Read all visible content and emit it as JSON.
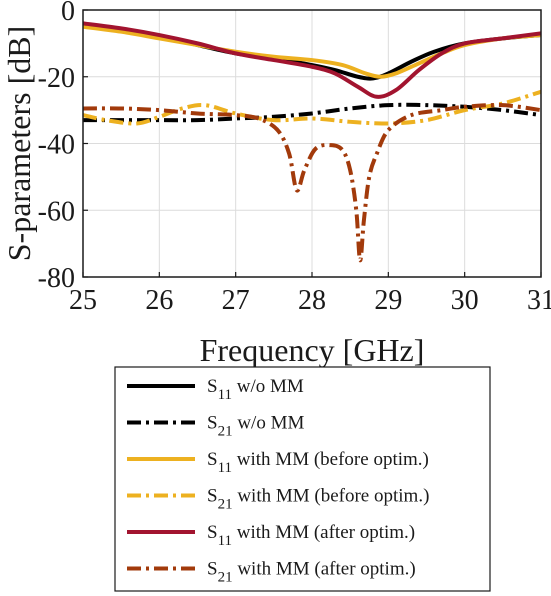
{
  "colors": {
    "black": "#000000",
    "gold": "#EDB120",
    "crimson": "#A2142F",
    "rust": "#A23A0B",
    "grid": "#DCDCDC"
  },
  "chart_data": {
    "type": "line",
    "title": "",
    "xlabel": "Frequency [GHz]",
    "ylabel": "S-parameters [dB]",
    "xlim": [
      25,
      31
    ],
    "ylim": [
      -80,
      0
    ],
    "xticks": [
      "25",
      "26",
      "27",
      "28",
      "29",
      "30",
      "31"
    ],
    "yticks": [
      "0",
      "-20",
      "-40",
      "-60",
      "-80"
    ],
    "grid": true,
    "legend_position": "below the plot",
    "series": [
      {
        "name": "S11 w/o MM",
        "legend_main": "S",
        "legend_sub": "11",
        "legend_rest": " w/o MM",
        "color": "#000000",
        "style": "solid",
        "x": [
          25,
          25.5,
          26,
          26.5,
          27,
          27.5,
          28,
          28.3,
          28.6,
          28.8,
          29.0,
          29.3,
          29.6,
          30,
          30.5,
          31
        ],
        "y": [
          -4.5,
          -6,
          -8,
          -10.5,
          -13,
          -14.5,
          -16.5,
          -18,
          -20,
          -20.5,
          -19,
          -15.5,
          -12.5,
          -10,
          -8.5,
          -7.5
        ]
      },
      {
        "name": "S21 w/o MM",
        "legend_main": "S",
        "legend_sub": "21",
        "legend_rest": " w/o MM",
        "color": "#000000",
        "style": "dashdot",
        "x": [
          25,
          25.5,
          26,
          26.5,
          27,
          27.5,
          28,
          28.5,
          29,
          29.5,
          30,
          30.5,
          31
        ],
        "y": [
          -33,
          -33,
          -33,
          -33,
          -32.5,
          -32,
          -31,
          -29.5,
          -28.5,
          -28.5,
          -29,
          -30,
          -31.5
        ]
      },
      {
        "name": "S11 with MM (before optim.)",
        "legend_main": "S",
        "legend_sub": "11",
        "legend_rest": " with MM (before optim.)",
        "color": "#EDB120",
        "style": "solid",
        "x": [
          25,
          25.5,
          26,
          26.5,
          27,
          27.5,
          28,
          28.4,
          28.7,
          28.9,
          29.1,
          29.4,
          29.7,
          30,
          30.5,
          31
        ],
        "y": [
          -5,
          -6.5,
          -8.5,
          -10.5,
          -12.5,
          -14,
          -15,
          -16.5,
          -19,
          -20,
          -19,
          -16,
          -13,
          -10.5,
          -8.5,
          -7.5
        ]
      },
      {
        "name": "S21 with MM (before optim.)",
        "legend_main": "S",
        "legend_sub": "21",
        "legend_rest": " with MM (before optim.)",
        "color": "#EDB120",
        "style": "dashdot",
        "x": [
          25,
          25.3,
          25.7,
          26,
          26.3,
          26.6,
          27,
          27.5,
          28,
          28.5,
          29,
          29.5,
          30,
          30.5,
          31
        ],
        "y": [
          -31.5,
          -33,
          -34,
          -32,
          -29.5,
          -28.5,
          -31,
          -33,
          -32.5,
          -33.5,
          -34,
          -33,
          -30,
          -28,
          -24.5
        ]
      },
      {
        "name": "S11 with MM (after optim.)",
        "legend_main": "S",
        "legend_sub": "11",
        "legend_rest": " with MM (after optim.)",
        "color": "#A2142F",
        "style": "solid",
        "x": [
          25,
          25.5,
          26,
          26.5,
          27,
          27.5,
          28,
          28.3,
          28.6,
          28.85,
          29.1,
          29.4,
          29.7,
          30,
          30.5,
          31
        ],
        "y": [
          -4,
          -5.5,
          -7.5,
          -10,
          -13,
          -15,
          -17,
          -19,
          -23,
          -26,
          -24,
          -18,
          -13,
          -10,
          -8.5,
          -7
        ]
      },
      {
        "name": "S21 with MM (after optim.)",
        "legend_main": "S",
        "legend_sub": "21",
        "legend_rest": " with MM (after optim.)",
        "color": "#A23A0B",
        "style": "dashdot",
        "x": [
          25,
          25.5,
          26,
          26.5,
          27,
          27.3,
          27.55,
          27.7,
          27.8,
          27.9,
          28.05,
          28.25,
          28.4,
          28.5,
          28.58,
          28.63,
          28.68,
          28.75,
          28.85,
          29,
          29.3,
          29.7,
          30,
          30.5,
          31
        ],
        "y": [
          -29.5,
          -29.5,
          -30,
          -31,
          -31.5,
          -32.5,
          -36,
          -43,
          -54,
          -48,
          -41.5,
          -40.5,
          -42,
          -48,
          -60,
          -75,
          -63,
          -50,
          -43,
          -36,
          -31.5,
          -30,
          -29,
          -28.5,
          -30
        ]
      }
    ]
  }
}
